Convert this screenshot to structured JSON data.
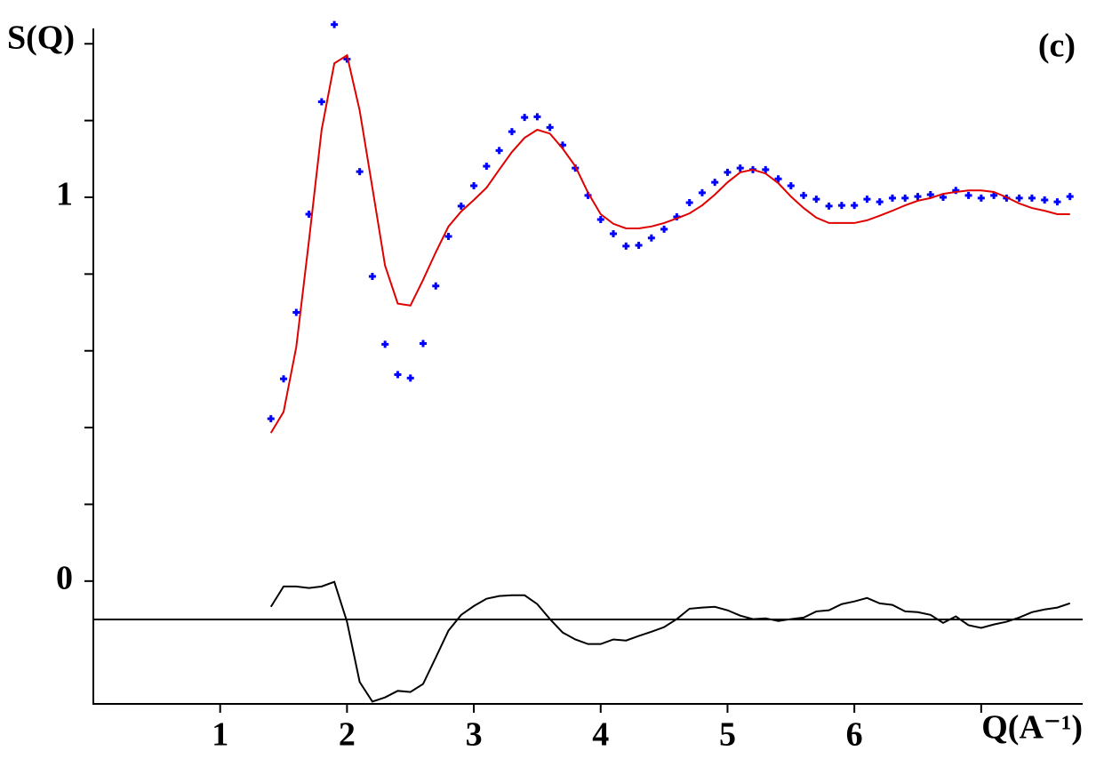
{
  "chart_data": {
    "type": "line",
    "annotation": "(c)",
    "y_label": "S(Q)",
    "x_label": "Q(A⁻¹)",
    "xlim": [
      0,
      7.8
    ],
    "ylim": [
      -0.32,
      1.44
    ],
    "xticks": [
      1,
      2,
      3,
      4,
      5,
      6
    ],
    "xminor_ticks": [
      7
    ],
    "yticks": [
      0,
      1
    ],
    "yminor_ticks": [
      0.2,
      0.4,
      0.6,
      0.8,
      1.2,
      1.4
    ],
    "hline": -0.1,
    "x": [
      1.4,
      1.5,
      1.6,
      1.7,
      1.8,
      1.9,
      2.0,
      2.1,
      2.2,
      2.3,
      2.4,
      2.5,
      2.6,
      2.7,
      2.8,
      2.9,
      3.0,
      3.1,
      3.2,
      3.3,
      3.4,
      3.5,
      3.6,
      3.7,
      3.8,
      3.9,
      4.0,
      4.1,
      4.2,
      4.3,
      4.4,
      4.5,
      4.6,
      4.7,
      4.8,
      4.9,
      5.0,
      5.1,
      5.2,
      5.3,
      5.4,
      5.5,
      5.6,
      5.7,
      5.8,
      5.9,
      6.0,
      6.1,
      6.2,
      6.3,
      6.4,
      6.5,
      6.6,
      6.7,
      6.8,
      6.9,
      7.0,
      7.1,
      7.2,
      7.3,
      7.4,
      7.5,
      7.6,
      7.7
    ],
    "series": [
      {
        "style": "markers",
        "color": "#0000ff",
        "values": [
          0.423,
          0.527,
          0.7,
          0.956,
          1.249,
          1.45,
          1.36,
          1.067,
          0.794,
          0.617,
          0.538,
          0.529,
          0.619,
          0.769,
          0.898,
          0.977,
          1.03,
          1.081,
          1.122,
          1.171,
          1.208,
          1.21,
          1.182,
          1.136,
          1.076,
          1.005,
          0.942,
          0.905,
          0.873,
          0.875,
          0.894,
          0.917,
          0.949,
          0.986,
          1.012,
          1.039,
          1.065,
          1.076,
          1.072,
          1.072,
          1.048,
          1.03,
          1.005,
          0.995,
          0.977,
          0.979,
          0.979,
          0.995,
          0.988,
          0.998,
          0.998,
          1.002,
          1.007,
          1.0,
          1.018,
          1.005,
          0.998,
          1.005,
          0.998,
          0.998,
          0.998,
          0.993,
          0.988,
          1.002
        ]
      },
      {
        "style": "line",
        "color": "#e00000",
        "values": [
          0.386,
          0.441,
          0.61,
          0.887,
          1.176,
          1.349,
          1.37,
          1.226,
          1.025,
          0.822,
          0.723,
          0.718,
          0.785,
          0.857,
          0.924,
          0.963,
          0.993,
          1.025,
          1.072,
          1.118,
          1.155,
          1.176,
          1.166,
          1.127,
          1.081,
          1.012,
          0.956,
          0.931,
          0.919,
          0.919,
          0.924,
          0.933,
          0.945,
          0.958,
          0.979,
          1.007,
          1.039,
          1.065,
          1.072,
          1.062,
          1.037,
          1.002,
          0.972,
          0.947,
          0.933,
          0.933,
          0.933,
          0.94,
          0.952,
          0.965,
          0.979,
          0.991,
          0.998,
          1.009,
          1.014,
          1.018,
          1.018,
          1.014,
          1.0,
          0.984,
          0.972,
          0.965,
          0.956,
          0.956
        ]
      },
      {
        "style": "line",
        "color": "#000000",
        "values": [
          -0.067,
          -0.014,
          -0.014,
          -0.018,
          -0.014,
          -0.002,
          -0.106,
          -0.263,
          -0.314,
          -0.303,
          -0.286,
          -0.289,
          -0.268,
          -0.199,
          -0.129,
          -0.088,
          -0.065,
          -0.046,
          -0.039,
          -0.037,
          -0.037,
          -0.06,
          -0.099,
          -0.134,
          -0.152,
          -0.164,
          -0.164,
          -0.152,
          -0.155,
          -0.143,
          -0.132,
          -0.12,
          -0.099,
          -0.072,
          -0.069,
          -0.067,
          -0.076,
          -0.09,
          -0.099,
          -0.097,
          -0.104,
          -0.099,
          -0.095,
          -0.079,
          -0.076,
          -0.06,
          -0.053,
          -0.044,
          -0.058,
          -0.062,
          -0.079,
          -0.081,
          -0.088,
          -0.109,
          -0.092,
          -0.115,
          -0.122,
          -0.113,
          -0.106,
          -0.095,
          -0.081,
          -0.074,
          -0.069,
          -0.058
        ]
      }
    ]
  }
}
